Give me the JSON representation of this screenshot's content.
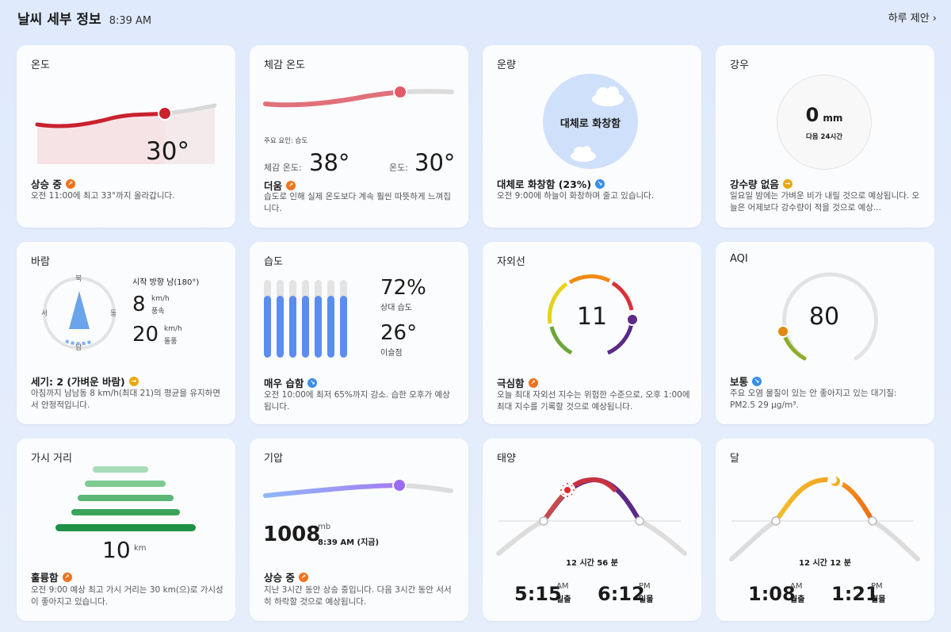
{
  "header": {
    "title": "날씨 세부 정보",
    "time": "8:39 AM",
    "suggest_label": "하루 제안 ›"
  },
  "cards": {
    "temp": {
      "title": "온도",
      "value": "30°",
      "status": "상승 중",
      "desc": "오전 11:00에 최고 33°까지 올라갑니다."
    },
    "feels": {
      "title": "체감 온도",
      "factor": "주요 요인: 습도",
      "feels_label": "체감 온도:",
      "feels_value": "38°",
      "temp_label": "온도:",
      "temp_value": "30°",
      "status": "더움",
      "desc": "습도로 인해 실제 온도보다 계속 훨씬 따뜻하게 느껴집니다."
    },
    "cloud": {
      "title": "운량",
      "center": "대체로 화창함",
      "status": "대체로 화창함 (23%)",
      "desc": "오전 9:00에 하늘이 화창하며 줄고 있습니다."
    },
    "rain": {
      "title": "강우",
      "value": "0",
      "unit": "mm",
      "sub": "다음 24시간",
      "status": "강수량 없음",
      "desc": "일요일 밤에는 가벼운 비가 내릴 것으로 예상됩니다. 오늘은 어제보다 강수량이 적을 것으로 예상..."
    },
    "wind": {
      "title": "바람",
      "dir_label": "시작 방향 남(180°)",
      "north": "북",
      "west": "서",
      "east": "동",
      "south": "남",
      "speed": "8",
      "speed_unit": "km/h",
      "speed_label": "풍속",
      "gust": "20",
      "gust_unit": "km/h",
      "gust_label": "돌풍",
      "status": "세기: 2 (가벼운 바람)",
      "desc": "아침까지 남남동 8 km/h(최대 21)의 평균을 유지하면서 안정적입니다."
    },
    "humidity": {
      "title": "습도",
      "value": "72%",
      "value_label": "상대 습도",
      "dew": "26°",
      "dew_label": "이슬점",
      "status": "매우 습함",
      "desc": "오전 10:00에 최저 65%까지 감소. 습한 오후가 예상됩니다."
    },
    "uv": {
      "title": "자외선",
      "value": "11",
      "status": "극심함",
      "desc": "오늘 최대 자외선 지수는 위험한 수준으로, 오후 1:00에 최대 지수를 기록할 것으로 예상됩니다."
    },
    "aqi": {
      "title": "AQI",
      "value": "80",
      "status": "보통",
      "desc": "주요 오염 물질이 있는 안 좋아지고 있는 대기질: PM2.5 29 µg/m³."
    },
    "visibility": {
      "title": "가시 거리",
      "value": "10",
      "unit": "km",
      "status": "훌륭함",
      "desc": "오전 9:00 예상 최고 가시 거리는 30 km(으)로 가시성이 좋아지고 있습니다."
    },
    "pressure": {
      "title": "기압",
      "value": "1008",
      "unit": "mb",
      "time": "8:39 AM (지금)",
      "status": "상승 중",
      "desc": "지난 3시간 동안 상승 중입니다. 다음 3시간 동안 서서히 하락할 것으로 예상됩니다."
    },
    "sun": {
      "title": "태양",
      "duration": "12 시간 56 분",
      "rise_time": "5:15",
      "rise_ampm": "AM",
      "rise_label": "일출",
      "set_time": "6:12",
      "set_ampm": "PM",
      "set_label": "일몰"
    },
    "moon": {
      "title": "달",
      "duration": "12 시간 12 분",
      "rise_time": "1:08",
      "rise_ampm": "AM",
      "rise_label": "월출",
      "set_time": "1:21",
      "set_ampm": "PM",
      "set_label": "월몰"
    }
  },
  "colors": {
    "temp": "#c8222e",
    "uv_purple": "#5b2a86",
    "aqi_orange": "#e08a12",
    "pressure": "#9b7cf0",
    "humidity": "#5b8def"
  },
  "icons": {
    "trend_up": "trend-up-icon",
    "trend_down": "trend-down-icon",
    "trend_flat": "trend-flat-icon"
  }
}
